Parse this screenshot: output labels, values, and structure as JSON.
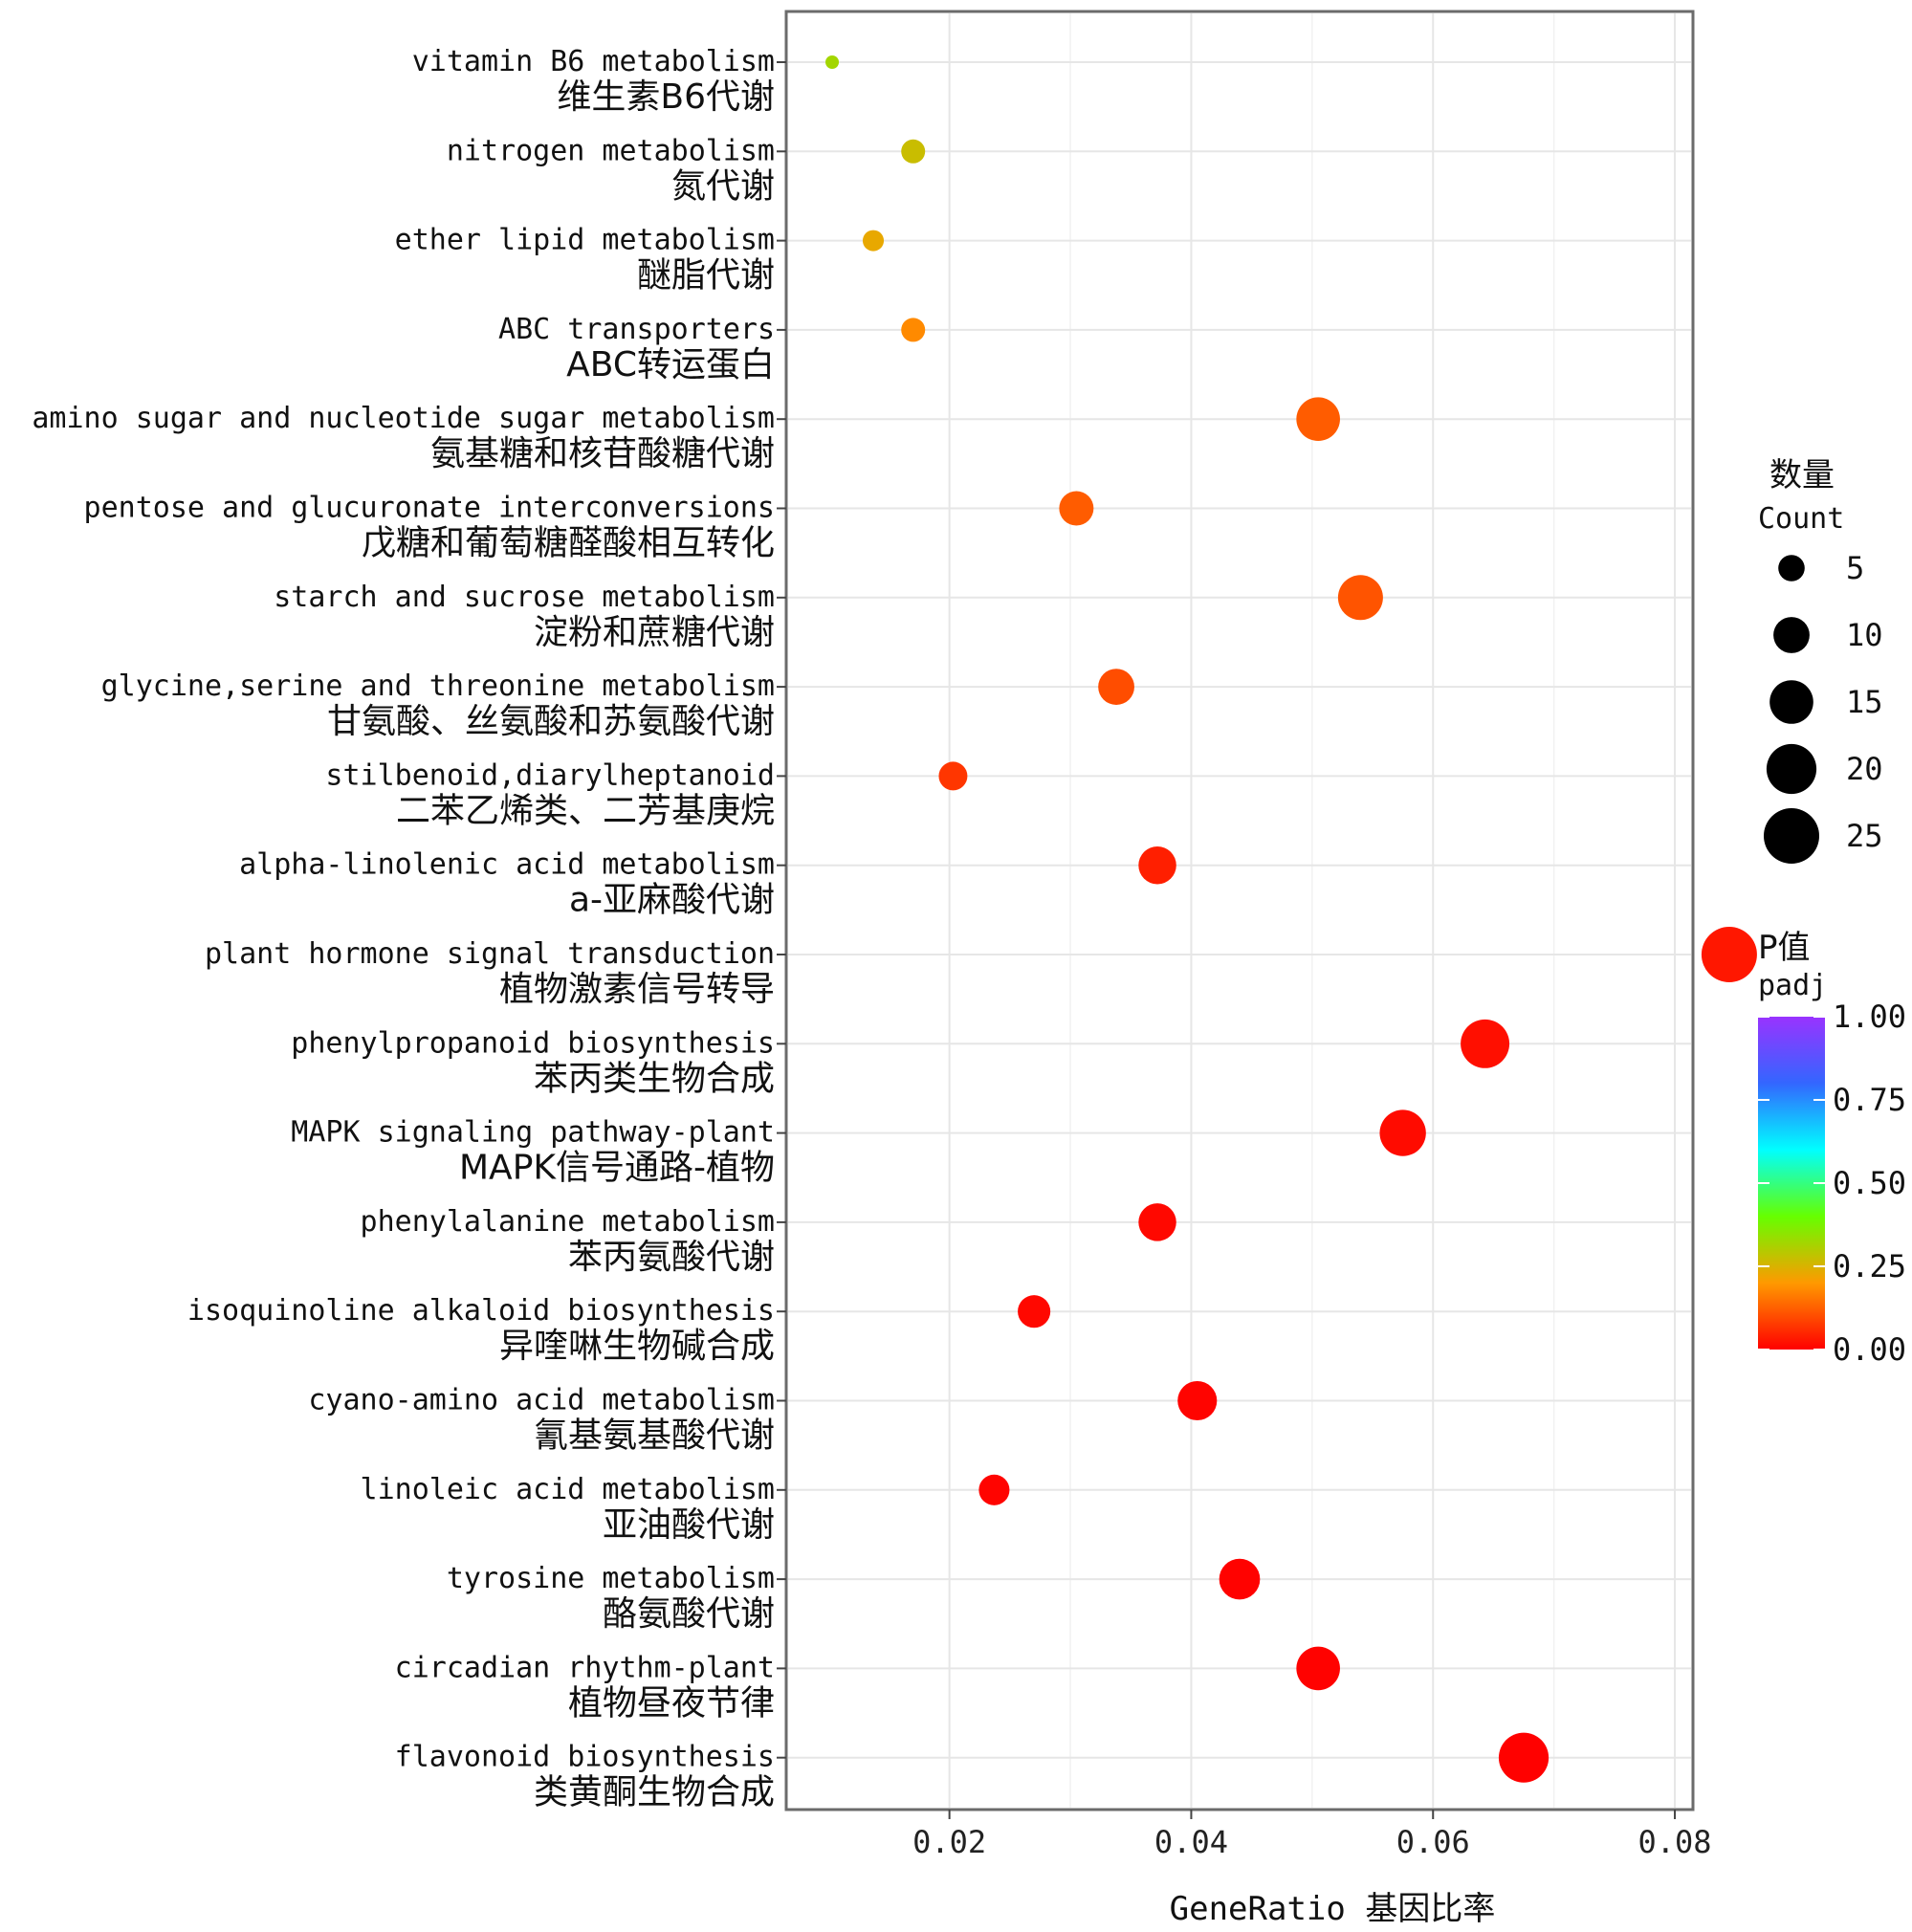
{
  "chart_data": {
    "type": "scatter",
    "xlabel": "GeneRatio 基因比率",
    "xlim": [
      0.0065,
      0.0815
    ],
    "xticks": [
      0.02,
      0.04,
      0.06,
      0.08
    ],
    "xtick_labels": [
      "0.02",
      "0.04",
      "0.06",
      "0.08"
    ],
    "grid": true,
    "legend_position": "right",
    "size_legend": {
      "title": "数量",
      "subtitle": "Count",
      "values": [
        5,
        10,
        15,
        20,
        25
      ],
      "labels": [
        "5",
        "10",
        "15",
        "20",
        "25"
      ]
    },
    "color_legend": {
      "title": "P值",
      "subtitle": "padj",
      "range": [
        0,
        1
      ],
      "ticks": [
        0,
        0.25,
        0.5,
        0.75,
        1
      ],
      "tick_labels": [
        "0.00",
        "0.25",
        "0.50",
        "0.75",
        "1.00"
      ],
      "colors": [
        "#ff0000",
        "#ff9900",
        "#66ff00",
        "#00ffff",
        "#3366ff",
        "#9933ff"
      ]
    },
    "points": [
      {
        "term_en": "vitamin B6 metabolism",
        "term_zh": "维生素B6代谢",
        "x": 0.0103,
        "count": 1,
        "padj": 0.32
      },
      {
        "term_en": "nitrogen metabolism",
        "term_zh": "氮代谢",
        "x": 0.017,
        "count": 4,
        "padj": 0.27
      },
      {
        "term_en": "ether lipid metabolism",
        "term_zh": "醚脂代谢",
        "x": 0.0137,
        "count": 3,
        "padj": 0.23
      },
      {
        "term_en": "ABC transporters",
        "term_zh": "ABC转运蛋白",
        "x": 0.017,
        "count": 4,
        "padj": 0.18
      },
      {
        "term_en": "amino sugar and nucleotide sugar metabolism",
        "term_zh": "氨基糖和核苷酸糖代谢",
        "x": 0.0505,
        "count": 15,
        "padj": 0.12
      },
      {
        "term_en": "pentose and glucuronate interconversions",
        "term_zh": "戊糖和葡萄糖醛酸相互转化",
        "x": 0.0305,
        "count": 9,
        "padj": 0.12
      },
      {
        "term_en": "starch and sucrose metabolism",
        "term_zh": "淀粉和蔗糖代谢",
        "x": 0.054,
        "count": 16,
        "padj": 0.11
      },
      {
        "term_en": "glycine,serine and threonine metabolism",
        "term_zh": "甘氨酸、丝氨酸和苏氨酸代谢",
        "x": 0.0338,
        "count": 10,
        "padj": 0.1
      },
      {
        "term_en": "stilbenoid,diarylheptanoid",
        "term_zh": "二苯乙烯类、二芳基庚烷",
        "x": 0.0203,
        "count": 6,
        "padj": 0.07
      },
      {
        "term_en": "alpha-linolenic acid metabolism",
        "term_zh": "a-亚麻酸代谢",
        "x": 0.0372,
        "count": 11,
        "padj": 0.04
      },
      {
        "term_en": "plant hormone signal transduction",
        "term_zh": "植物激素信号转导",
        "x": 0.0845,
        "count": 25,
        "padj": 0.03
      },
      {
        "term_en": "phenylpropanoid biosynthesis",
        "term_zh": "苯丙类生物合成",
        "x": 0.0643,
        "count": 19,
        "padj": 0.02
      },
      {
        "term_en": "MAPK signaling pathway-plant",
        "term_zh": "MAPK信号通路-植物",
        "x": 0.0575,
        "count": 17,
        "padj": 0.015
      },
      {
        "term_en": "phenylalanine metabolism",
        "term_zh": "苯丙氨酸代谢",
        "x": 0.0372,
        "count": 11,
        "padj": 0.01
      },
      {
        "term_en": "isoquinoline alkaloid biosynthesis",
        "term_zh": "异喹啉生物碱合成",
        "x": 0.027,
        "count": 8,
        "padj": 0.01
      },
      {
        "term_en": "cyano-amino acid metabolism",
        "term_zh": "氰基氨基酸代谢",
        "x": 0.0405,
        "count": 12,
        "padj": 0.005
      },
      {
        "term_en": "linoleic acid metabolism",
        "term_zh": "亚油酸代谢",
        "x": 0.0237,
        "count": 7,
        "padj": 0.005
      },
      {
        "term_en": "tyrosine metabolism",
        "term_zh": "酪氨酸代谢",
        "x": 0.044,
        "count": 13,
        "padj": 0.003
      },
      {
        "term_en": "circadian rhythm-plant",
        "term_zh": "植物昼夜节律",
        "x": 0.0505,
        "count": 15,
        "padj": 0.002
      },
      {
        "term_en": "flavonoid biosynthesis",
        "term_zh": "类黄酮生物合成",
        "x": 0.0675,
        "count": 20,
        "padj": 0.001
      }
    ]
  }
}
